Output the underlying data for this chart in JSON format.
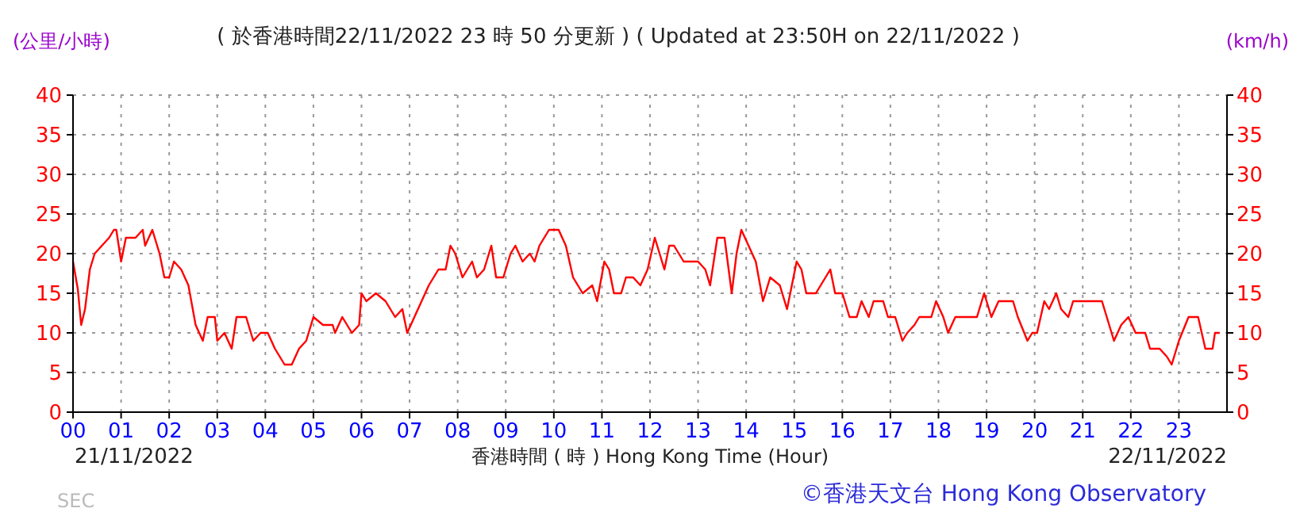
{
  "chart_data": {
    "type": "line",
    "title": "( 於香港時間22/11/2022 23 時 50 分更新 ) ( Updated at 23:50H on 22/11/2022 )",
    "xlabel": "香港時間 ( 時 ) Hong Kong Time (Hour)",
    "ylabel": "(公里/小時)",
    "y2label": "(km/h)",
    "annotations": [
      "21/11/2022",
      "22/11/2022",
      "©香港天文台 Hong Kong Observatory",
      "SEC"
    ],
    "xlim": [
      0,
      24
    ],
    "xticks": [
      {
        "value": 0,
        "label": "00"
      },
      {
        "value": 1,
        "label": "01"
      },
      {
        "value": 2,
        "label": "02"
      },
      {
        "value": 3,
        "label": "03"
      },
      {
        "value": 4,
        "label": "04"
      },
      {
        "value": 5,
        "label": "05"
      },
      {
        "value": 6,
        "label": "06"
      },
      {
        "value": 7,
        "label": "07"
      },
      {
        "value": 8,
        "label": "08"
      },
      {
        "value": 9,
        "label": "09"
      },
      {
        "value": 10,
        "label": "10"
      },
      {
        "value": 11,
        "label": "11"
      },
      {
        "value": 12,
        "label": "12"
      },
      {
        "value": 13,
        "label": "13"
      },
      {
        "value": 14,
        "label": "14"
      },
      {
        "value": 15,
        "label": "15"
      },
      {
        "value": 16,
        "label": "16"
      },
      {
        "value": 17,
        "label": "17"
      },
      {
        "value": 18,
        "label": "18"
      },
      {
        "value": 19,
        "label": "19"
      },
      {
        "value": 20,
        "label": "20"
      },
      {
        "value": 21,
        "label": "21"
      },
      {
        "value": 22,
        "label": "22"
      },
      {
        "value": 23,
        "label": "23"
      }
    ],
    "ylim": [
      0,
      40
    ],
    "yticks": [
      0,
      5,
      10,
      15,
      20,
      25,
      30,
      35,
      40
    ],
    "y2lim": [
      0,
      40
    ],
    "y2ticks": [
      0,
      5,
      10,
      15,
      20,
      25,
      30,
      35,
      40
    ],
    "grid": true,
    "line_style": "solid",
    "series": [
      {
        "color": "#ff0000",
        "x": [
          0,
          0.1,
          0.17,
          0.25,
          0.35,
          0.45,
          0.6,
          0.75,
          0.85,
          0.9,
          1.0,
          1.1,
          1.3,
          1.45,
          1.5,
          1.65,
          1.8,
          1.9,
          2.0,
          2.1,
          2.25,
          2.4,
          2.55,
          2.7,
          2.8,
          2.95,
          3.0,
          3.15,
          3.3,
          3.4,
          3.6,
          3.75,
          3.9,
          4.05,
          4.2,
          4.4,
          4.55,
          4.7,
          4.85,
          5.0,
          5.2,
          5.4,
          5.45,
          5.6,
          5.8,
          5.95,
          6.0,
          6.1,
          6.3,
          6.5,
          6.6,
          6.7,
          6.85,
          6.95,
          7.1,
          7.25,
          7.4,
          7.6,
          7.75,
          7.85,
          7.95,
          8.1,
          8.3,
          8.4,
          8.55,
          8.7,
          8.8,
          8.95,
          9.1,
          9.2,
          9.35,
          9.5,
          9.6,
          9.7,
          9.9,
          10.1,
          10.25,
          10.4,
          10.6,
          10.8,
          10.9,
          11.05,
          11.15,
          11.25,
          11.4,
          11.5,
          11.65,
          11.8,
          11.95,
          12.1,
          12.3,
          12.4,
          12.5,
          12.6,
          12.7,
          13.0,
          13.15,
          13.25,
          13.4,
          13.55,
          13.7,
          13.8,
          13.9,
          14.05,
          14.2,
          14.35,
          14.5,
          14.7,
          14.85,
          15.05,
          15.15,
          15.25,
          15.45,
          15.55,
          15.65,
          15.75,
          15.85,
          16.0,
          16.15,
          16.3,
          16.4,
          16.55,
          16.65,
          16.85,
          16.95,
          17.1,
          17.25,
          17.35,
          17.5,
          17.6,
          17.85,
          17.95,
          18.1,
          18.2,
          18.35,
          18.8,
          18.95,
          19.1,
          19.25,
          19.55,
          19.65,
          19.85,
          19.95,
          20.05,
          20.2,
          20.3,
          20.45,
          20.55,
          20.7,
          20.8,
          21.0,
          21.4,
          21.5,
          21.65,
          21.8,
          21.95,
          22.1,
          22.3,
          22.4,
          22.6,
          22.75,
          22.85,
          23.0,
          23.2,
          23.4,
          23.55,
          23.7,
          23.75,
          23.85
        ],
        "values": [
          19,
          15.5,
          11,
          13,
          18,
          20,
          21,
          22,
          23,
          23,
          19,
          22,
          22,
          23,
          21,
          23,
          20,
          17,
          17,
          19,
          18,
          16,
          11,
          9,
          12,
          12,
          9,
          10,
          8,
          12,
          12,
          9,
          10,
          10,
          8,
          6,
          6,
          8,
          9,
          12,
          11,
          11,
          10,
          12,
          10,
          11,
          15,
          14,
          15,
          14,
          13,
          12,
          13,
          10,
          12,
          14,
          16,
          18,
          18,
          21,
          20,
          17,
          19,
          17,
          18,
          21,
          17,
          17,
          20,
          21,
          19,
          20,
          19,
          21,
          23,
          23,
          21,
          17,
          15,
          16,
          14,
          19,
          18,
          15,
          15,
          17,
          17,
          16,
          18,
          22,
          18,
          21,
          21,
          20,
          19,
          19,
          18,
          16,
          22,
          22,
          15,
          20,
          23,
          21,
          19,
          14,
          17,
          16,
          13,
          19,
          18,
          15,
          15,
          16,
          17,
          18,
          15,
          15,
          12,
          12,
          14,
          12,
          14,
          14,
          12,
          12,
          9,
          10,
          11,
          12,
          12,
          14,
          12,
          10,
          12,
          12,
          15,
          12,
          14,
          14,
          12,
          9,
          10,
          10,
          14,
          13,
          15,
          13,
          12,
          14,
          14,
          14,
          12,
          9,
          11,
          12,
          10,
          10,
          8,
          8,
          7,
          6,
          9,
          12,
          12,
          8,
          8,
          10,
          10
        ]
      }
    ]
  }
}
